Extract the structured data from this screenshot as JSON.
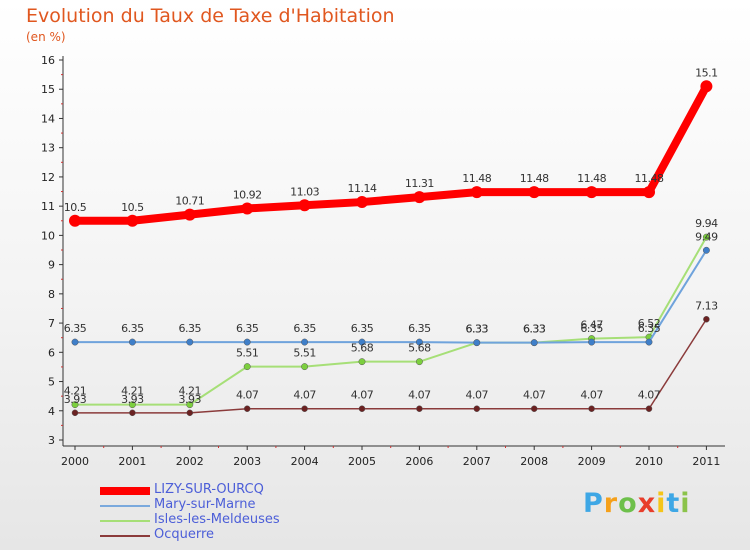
{
  "chart_data": {
    "type": "line",
    "title": "Evolution du Taux de Taxe d'Habitation",
    "subtitle": "(en %)",
    "x": [
      "2000",
      "2001",
      "2002",
      "2003",
      "2004",
      "2005",
      "2006",
      "2007",
      "2008",
      "2009",
      "2010",
      "2011"
    ],
    "ylim": [
      3,
      16
    ],
    "yticks": [
      "3",
      "4",
      "5",
      "6",
      "7",
      "8",
      "9",
      "10",
      "11",
      "12",
      "13",
      "14",
      "15",
      "16"
    ],
    "grid": false,
    "legend_position": "bottom-left",
    "series": [
      {
        "name": "LIZY-SUR-OURCQ",
        "color": "#ff0000",
        "values": [
          10.5,
          10.5,
          10.71,
          10.92,
          11.03,
          11.14,
          11.31,
          11.48,
          11.48,
          11.48,
          11.48,
          15.1
        ],
        "labels": [
          "10.5",
          "10.5",
          "10.71",
          "10.92",
          "11.03",
          "11.14",
          "11.31",
          "11.48",
          "11.48",
          "11.48",
          "11.48",
          "15.1"
        ]
      },
      {
        "name": "Mary-sur-Marne",
        "color": "#4f8fd0",
        "values": [
          6.35,
          6.35,
          6.35,
          6.35,
          6.35,
          6.35,
          6.35,
          6.33,
          6.33,
          6.35,
          6.35,
          9.49
        ],
        "labels": [
          "6.35",
          "6.35",
          "6.35",
          "6.35",
          "6.35",
          "6.35",
          "6.35",
          "6.33",
          "6.33",
          "6.35",
          "6.35",
          "9.49"
        ]
      },
      {
        "name": "Isles-les-Meldeuses",
        "color": "#a6df77",
        "values": [
          4.21,
          4.21,
          4.21,
          5.51,
          5.51,
          5.68,
          5.68,
          6.33,
          6.33,
          6.47,
          6.52,
          9.94
        ],
        "labels": [
          "4.21",
          "4.21",
          "4.21",
          "5.51",
          "5.51",
          "5.68",
          "5.68",
          "6.33",
          "6.33",
          "6.47",
          "6.52",
          "9.94"
        ]
      },
      {
        "name": "Ocquerre",
        "color": "#7b2e2e",
        "values": [
          3.93,
          3.93,
          3.93,
          4.07,
          4.07,
          4.07,
          4.07,
          4.07,
          4.07,
          4.07,
          4.07,
          7.13
        ],
        "labels": [
          "3.93",
          "3.93",
          "3.93",
          "4.07",
          "4.07",
          "4.07",
          "4.07",
          "4.07",
          "4.07",
          "4.07",
          "4.07",
          "7.13"
        ]
      }
    ]
  },
  "brand": {
    "letters": [
      "P",
      "r",
      "o",
      "x",
      "i",
      "t",
      "i"
    ],
    "colors": [
      "#3ea7e5",
      "#f5a01a",
      "#6dc04b",
      "#e83e2b",
      "#f5c518",
      "#3ea7e5",
      "#8bc34a"
    ]
  }
}
